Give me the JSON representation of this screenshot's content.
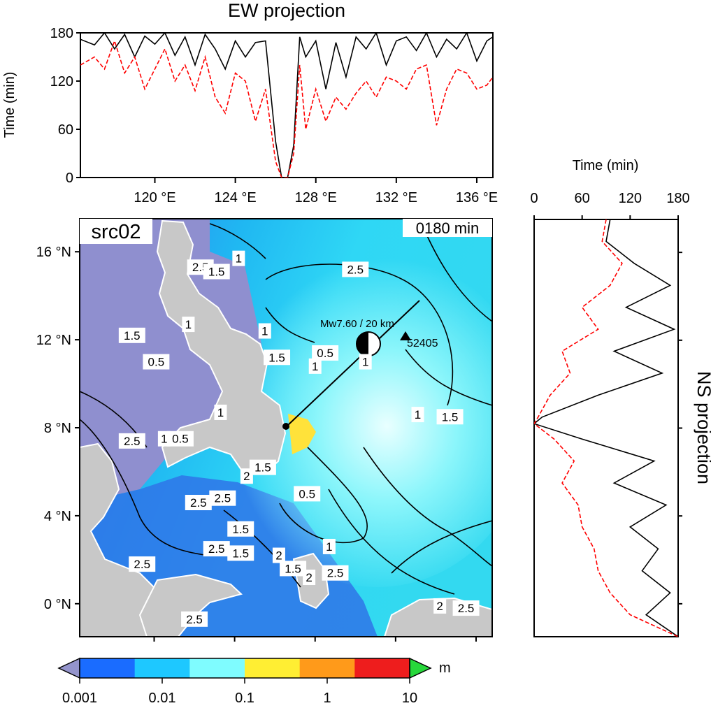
{
  "chart_data": [
    {
      "type": "line",
      "title": "EW projection",
      "ylabel": "Time (min)",
      "xlim": [
        116.3,
        136.8
      ],
      "ylim": [
        0,
        180
      ],
      "x_ticks": [
        120,
        124,
        128,
        132,
        136
      ],
      "x_tick_labels": [
        "120 °E",
        "124 °E",
        "128 °E",
        "132 °E",
        "136 °E"
      ],
      "y_ticks": [
        0,
        60,
        120,
        180
      ],
      "y_tick_labels": [
        "0",
        "60",
        "120",
        "180"
      ],
      "series": [
        {
          "style": "solid",
          "color": "#000000",
          "x": [
            116.3,
            117.0,
            117.5,
            118.0,
            118.5,
            119.0,
            119.5,
            120.0,
            120.5,
            121.0,
            121.5,
            122.0,
            122.5,
            123.0,
            123.5,
            124.0,
            124.5,
            125.0,
            125.5,
            126.0,
            126.3,
            126.6,
            126.9,
            127.2,
            127.5,
            128.0,
            128.5,
            129.0,
            129.5,
            130.0,
            130.5,
            131.0,
            131.5,
            132.0,
            132.5,
            133.0,
            133.5,
            134.0,
            134.5,
            135.0,
            135.5,
            136.0,
            136.5,
            136.8
          ],
          "y": [
            172,
            165,
            180,
            160,
            178,
            150,
            176,
            166,
            180,
            152,
            175,
            140,
            178,
            160,
            135,
            170,
            150,
            168,
            170,
            45,
            0,
            0,
            40,
            175,
            150,
            170,
            110,
            168,
            125,
            175,
            160,
            180,
            140,
            170,
            175,
            158,
            180,
            150,
            172,
            160,
            180,
            145,
            170,
            175
          ]
        },
        {
          "style": "dashed",
          "color": "#ff0000",
          "x": [
            116.3,
            117.0,
            117.5,
            118.0,
            118.5,
            119.0,
            119.5,
            120.0,
            120.5,
            121.0,
            121.5,
            122.0,
            122.5,
            123.0,
            123.5,
            124.0,
            124.5,
            125.0,
            125.5,
            126.0,
            126.3,
            126.6,
            126.9,
            127.2,
            127.5,
            128.0,
            128.5,
            129.0,
            129.5,
            130.0,
            130.5,
            131.0,
            131.5,
            132.0,
            132.5,
            133.0,
            133.5,
            134.0,
            134.5,
            135.0,
            135.5,
            136.0,
            136.5,
            136.8
          ],
          "y": [
            140,
            150,
            135,
            170,
            130,
            150,
            110,
            135,
            160,
            120,
            140,
            108,
            150,
            100,
            80,
            130,
            120,
            70,
            110,
            20,
            0,
            0,
            30,
            140,
            60,
            110,
            70,
            100,
            85,
            105,
            120,
            100,
            125,
            120,
            110,
            135,
            140,
            65,
            110,
            135,
            130,
            110,
            115,
            125
          ]
        }
      ]
    },
    {
      "type": "line",
      "title": "NS projection",
      "xlabel": "Time (min)",
      "xlim": [
        0,
        180
      ],
      "ylim": [
        -1.5,
        17.5
      ],
      "x_ticks": [
        0,
        60,
        120,
        180
      ],
      "x_tick_labels": [
        "0",
        "60",
        "120",
        "180"
      ],
      "series": [
        {
          "style": "solid",
          "color": "#000000",
          "y": [
            17.5,
            16.5,
            15.5,
            14.5,
            13.5,
            12.5,
            11.5,
            10.5,
            9.5,
            8.5,
            8.2,
            7.5,
            6.5,
            5.5,
            4.5,
            3.5,
            2.5,
            1.5,
            0.5,
            -0.5,
            -1.5
          ],
          "x": [
            95,
            90,
            125,
            170,
            115,
            175,
            100,
            160,
            80,
            10,
            0,
            60,
            150,
            100,
            165,
            120,
            155,
            135,
            170,
            140,
            180
          ]
        },
        {
          "style": "dashed",
          "color": "#ff0000",
          "y": [
            17.5,
            16.5,
            15.5,
            14.5,
            13.5,
            12.5,
            11.5,
            10.5,
            9.5,
            8.5,
            8.2,
            7.5,
            6.5,
            5.5,
            4.5,
            3.5,
            2.5,
            1.5,
            0.5,
            -0.5,
            -1.5
          ],
          "x": [
            90,
            85,
            110,
            95,
            60,
            80,
            35,
            45,
            20,
            5,
            0,
            25,
            50,
            35,
            55,
            60,
            75,
            80,
            95,
            120,
            180
          ]
        }
      ]
    },
    {
      "type": "heatmap",
      "map_label": "src02",
      "time_label": "0180 min",
      "lon_range": [
        116.3,
        136.8
      ],
      "lat_range": [
        -1.5,
        17.5
      ],
      "lat_ticks": [
        0,
        4,
        8,
        12,
        16
      ],
      "lat_tick_labels": [
        "0 °N",
        "4 °N",
        "8 °N",
        "12 °N",
        "16 °N"
      ],
      "event_label": "Mw7.60 / 20 km",
      "station_label": "52405",
      "contour_labels": [
        {
          "text": "2.5",
          "lon": 122.3,
          "lat": 15.3
        },
        {
          "text": "1.5",
          "lon": 123.1,
          "lat": 15.1
        },
        {
          "text": "1",
          "lon": 124.2,
          "lat": 15.7
        },
        {
          "text": "2.5",
          "lon": 130.0,
          "lat": 15.2
        },
        {
          "text": "1.5",
          "lon": 118.9,
          "lat": 12.2
        },
        {
          "text": "0.5",
          "lon": 120.1,
          "lat": 11.0
        },
        {
          "text": "1",
          "lon": 121.7,
          "lat": 12.7
        },
        {
          "text": "1",
          "lon": 125.5,
          "lat": 12.4
        },
        {
          "text": "1.5",
          "lon": 126.1,
          "lat": 11.2
        },
        {
          "text": "0.5",
          "lon": 128.5,
          "lat": 11.4
        },
        {
          "text": "1",
          "lon": 128.0,
          "lat": 10.8
        },
        {
          "text": "1",
          "lon": 130.5,
          "lat": 11.0
        },
        {
          "text": "1",
          "lon": 123.3,
          "lat": 8.7
        },
        {
          "text": "1",
          "lon": 133.1,
          "lat": 8.6
        },
        {
          "text": "1.5",
          "lon": 134.7,
          "lat": 8.5
        },
        {
          "text": "2.5",
          "lon": 118.9,
          "lat": 7.4
        },
        {
          "text": "1",
          "lon": 120.5,
          "lat": 7.5
        },
        {
          "text": "0.5",
          "lon": 121.3,
          "lat": 7.5
        },
        {
          "text": "2",
          "lon": 124.6,
          "lat": 5.8
        },
        {
          "text": "1.5",
          "lon": 125.4,
          "lat": 6.2
        },
        {
          "text": "0.5",
          "lon": 127.6,
          "lat": 5.0
        },
        {
          "text": "2.5",
          "lon": 122.2,
          "lat": 4.6
        },
        {
          "text": "2.5",
          "lon": 123.4,
          "lat": 4.8
        },
        {
          "text": "1.5",
          "lon": 124.3,
          "lat": 3.4
        },
        {
          "text": "1",
          "lon": 128.7,
          "lat": 2.6
        },
        {
          "text": "2.5",
          "lon": 123.1,
          "lat": 2.5
        },
        {
          "text": "1.5",
          "lon": 124.3,
          "lat": 2.3
        },
        {
          "text": "2",
          "lon": 126.2,
          "lat": 2.2
        },
        {
          "text": "2.5",
          "lon": 119.4,
          "lat": 1.8
        },
        {
          "text": "1.5",
          "lon": 126.9,
          "lat": 1.6
        },
        {
          "text": "2",
          "lon": 127.7,
          "lat": 1.2
        },
        {
          "text": "2.5",
          "lon": 129.0,
          "lat": 1.4
        },
        {
          "text": "2",
          "lon": 134.2,
          "lat": -0.1
        },
        {
          "text": "2.5",
          "lon": 135.5,
          "lat": -0.2
        },
        {
          "text": "2.5",
          "lon": 122.0,
          "lat": -0.7
        }
      ],
      "colorbar": {
        "scale": "log",
        "tick_labels": [
          "0.001",
          "0.01",
          "0.1",
          "1",
          "10"
        ],
        "unit": "m",
        "colors": [
          "#1a6cff",
          "#1ec8ff",
          "#7ffcff",
          "#ffee33",
          "#ff9a1a",
          "#ee1d1d"
        ],
        "below_color": "#9494cc",
        "above_color": "#27d83b"
      }
    }
  ]
}
